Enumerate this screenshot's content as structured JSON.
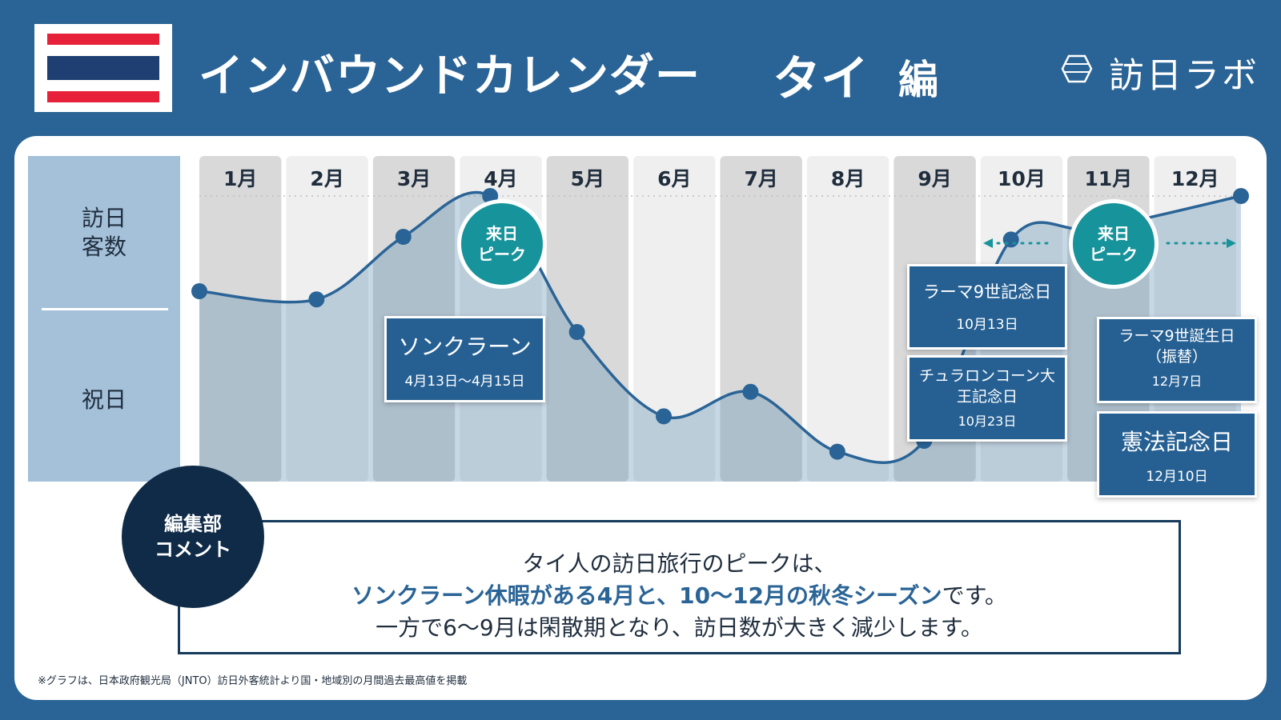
{
  "header": {
    "title": "インバウンドカレンダー",
    "country": "タイ",
    "suffix": "編",
    "logo_text": "訪日ラボ"
  },
  "flag": {
    "colors": [
      "#e8213a",
      "#ffffff",
      "#1f3f73",
      "#ffffff",
      "#e8213a"
    ]
  },
  "labels": {
    "visitors_line1": "訪日",
    "visitors_line2": "客数",
    "holiday": "祝日"
  },
  "chart_data": {
    "type": "line",
    "categories": [
      "1月",
      "2月",
      "3月",
      "4月",
      "5月",
      "6月",
      "7月",
      "8月",
      "9月",
      "10月",
      "11月",
      "12月"
    ],
    "series": [
      {
        "values": [
          0.65,
          0.62,
          0.85,
          1.0,
          0.5,
          0.19,
          0.28,
          0.06,
          0.1,
          0.84,
          0.88,
          1.0
        ]
      }
    ],
    "ylim": [
      0,
      1
    ],
    "y_unit_note": "relative visitor level (unlabeled axis)",
    "colors": {
      "line": "#2a6496",
      "area": "#5e8eb5",
      "col_dark": "#d9d9d9",
      "col_light": "#efefef"
    }
  },
  "peaks": [
    {
      "line1": "来日",
      "line2": "ピーク"
    },
    {
      "line1": "来日",
      "line2": "ピーク"
    }
  ],
  "events": [
    {
      "name": "ソンクラーン",
      "date": "4月13日〜4月15日"
    },
    {
      "name": "ラーマ9世記念日",
      "date": "10月13日"
    },
    {
      "name": "チュラロンコーン大王記念日",
      "date": "10月23日"
    },
    {
      "name": "ラーマ9世誕生日（振替）",
      "date": "12月7日"
    },
    {
      "name": "憲法記念日",
      "date": "12月10日"
    }
  ],
  "comment": {
    "badge_line1": "編集部",
    "badge_line2": "コメント",
    "line1": "タイ人の訪日旅行のピークは、",
    "line2_highlight": "ソンクラーン休暇がある4月と、10〜12月の秋冬シーズン",
    "line2_tail": "です。",
    "line3": "一方で6〜9月は閑散期となり、訪日数が大きく減少します。"
  },
  "footnote": "※グラフは、日本政府観光局（JNTO）訪日外客統計より国・地域別の月間過去最高値を掲載"
}
